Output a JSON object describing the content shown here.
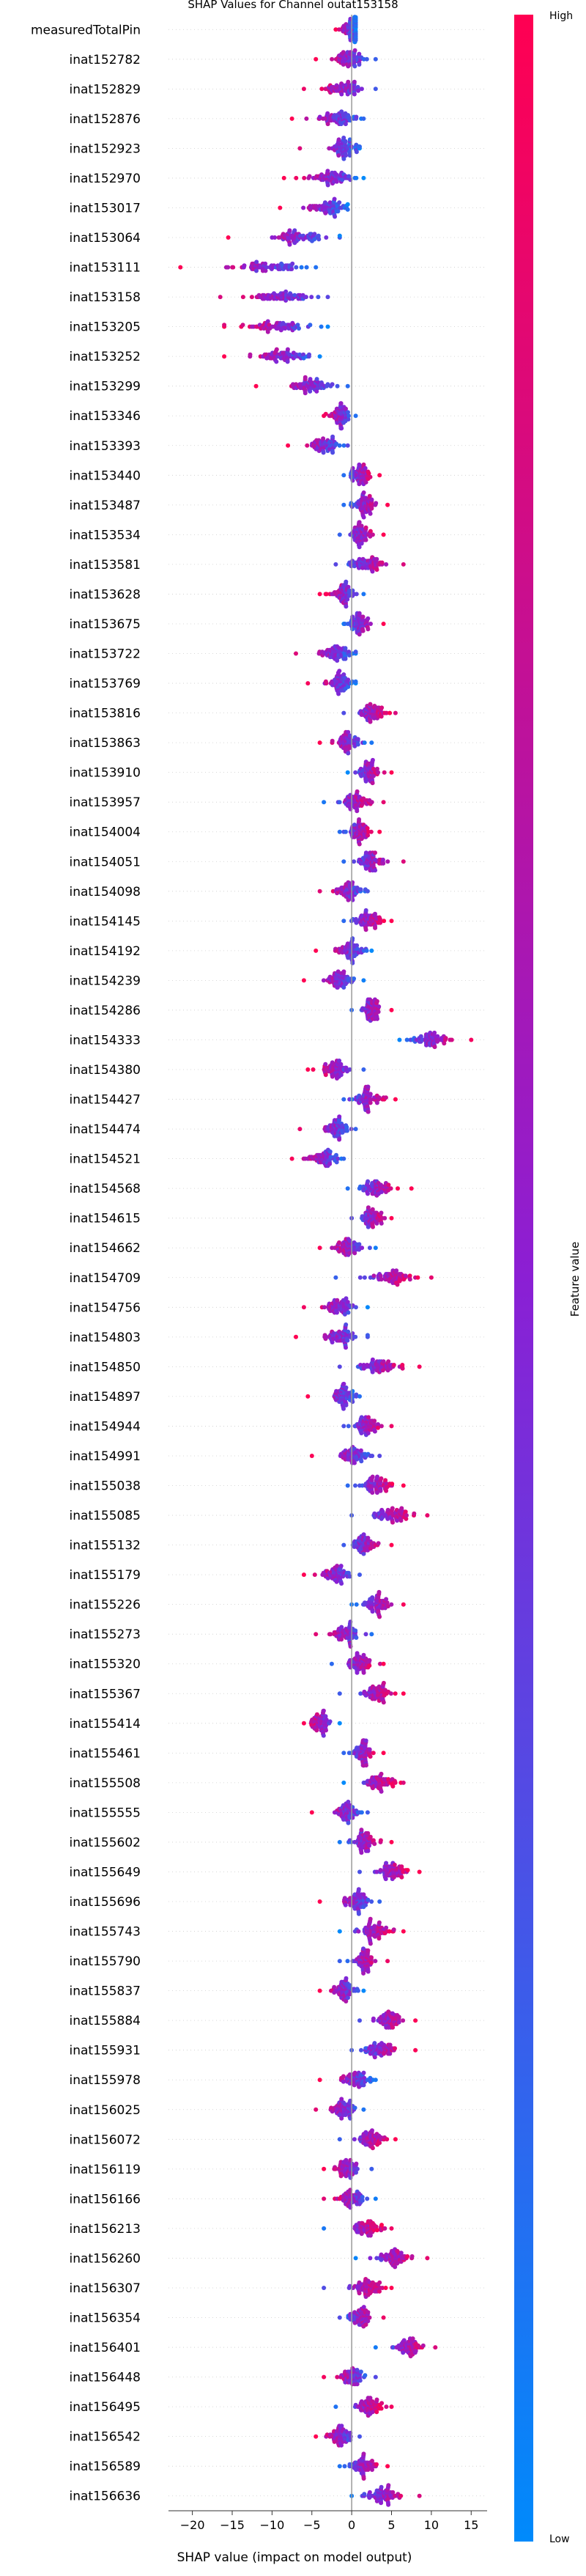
{
  "chart_data": {
    "type": "scatter",
    "subtype": "shap-beeswarm",
    "title": "SHAP Values for Channel outat153158",
    "xlabel": "SHAP value (impact on model output)",
    "xlim": [
      -23,
      17
    ],
    "xticks": [
      -20,
      -15,
      -10,
      -5,
      0,
      5,
      10,
      15
    ],
    "colorbar": {
      "label": "Feature value",
      "high": "High",
      "low": "Low",
      "color_low": "#008afb",
      "color_mid": "#8b1fd4",
      "color_high": "#ff0052"
    },
    "features": [
      {
        "name": "measuredTotalPin",
        "min": -2.0,
        "max": 0.5,
        "mean": 0.0,
        "spread": 1.0
      },
      {
        "name": "inat152782",
        "min": -4.5,
        "max": 3.0,
        "mean": -0.5,
        "spread": 1.6
      },
      {
        "name": "inat152829",
        "min": -6.0,
        "max": 3.0,
        "mean": -1.0,
        "spread": 2.0
      },
      {
        "name": "inat152876",
        "min": -7.5,
        "max": 1.5,
        "mean": -1.5,
        "spread": 2.0
      },
      {
        "name": "inat152923",
        "min": -6.5,
        "max": 1.0,
        "mean": -1.0,
        "spread": 1.5
      },
      {
        "name": "inat152970",
        "min": -8.5,
        "max": 1.5,
        "mean": -2.5,
        "spread": 2.2
      },
      {
        "name": "inat153017",
        "min": -9.0,
        "max": -0.5,
        "mean": -3.0,
        "spread": 2.0
      },
      {
        "name": "inat153064",
        "min": -15.5,
        "max": -1.5,
        "mean": -7.0,
        "spread": 3.0
      },
      {
        "name": "inat153111",
        "min": -21.5,
        "max": -4.5,
        "mean": -10.5,
        "spread": 3.3
      },
      {
        "name": "inat153158",
        "min": -16.5,
        "max": -3.0,
        "mean": -8.5,
        "spread": 3.0
      },
      {
        "name": "inat153205",
        "min": -16.0,
        "max": -3.0,
        "mean": -9.5,
        "spread": 3.0
      },
      {
        "name": "inat153252",
        "min": -16.0,
        "max": -4.0,
        "mean": -9.0,
        "spread": 3.0
      },
      {
        "name": "inat153299",
        "min": -12.0,
        "max": -0.5,
        "mean": -5.0,
        "spread": 2.5
      },
      {
        "name": "inat153346",
        "min": -3.5,
        "max": 0.5,
        "mean": -1.5,
        "spread": 1.0
      },
      {
        "name": "inat153393",
        "min": -8.0,
        "max": -0.5,
        "mean": -3.5,
        "spread": 1.8
      },
      {
        "name": "inat153440",
        "min": -1.0,
        "max": 3.5,
        "mean": 1.0,
        "spread": 1.0
      },
      {
        "name": "inat153487",
        "min": -1.0,
        "max": 4.5,
        "mean": 1.5,
        "spread": 1.2
      },
      {
        "name": "inat153534",
        "min": -1.5,
        "max": 4.0,
        "mean": 1.0,
        "spread": 1.2
      },
      {
        "name": "inat153581",
        "min": -2.0,
        "max": 6.5,
        "mean": 2.0,
        "spread": 1.8
      },
      {
        "name": "inat153628",
        "min": -4.0,
        "max": 1.5,
        "mean": -1.0,
        "spread": 1.2
      },
      {
        "name": "inat153675",
        "min": -1.0,
        "max": 4.0,
        "mean": 1.0,
        "spread": 1.1
      },
      {
        "name": "inat153722",
        "min": -7.0,
        "max": 0.5,
        "mean": -2.0,
        "spread": 1.6
      },
      {
        "name": "inat153769",
        "min": -5.5,
        "max": 0.5,
        "mean": -1.5,
        "spread": 1.3
      },
      {
        "name": "inat153816",
        "min": -1.0,
        "max": 5.5,
        "mean": 2.5,
        "spread": 1.4
      },
      {
        "name": "inat153863",
        "min": -4.0,
        "max": 2.5,
        "mean": -0.5,
        "spread": 1.3
      },
      {
        "name": "inat153910",
        "min": -0.5,
        "max": 5.0,
        "mean": 2.0,
        "spread": 1.2
      },
      {
        "name": "inat153957",
        "min": -3.5,
        "max": 4.0,
        "mean": 0.5,
        "spread": 1.5
      },
      {
        "name": "inat154004",
        "min": -1.5,
        "max": 3.5,
        "mean": 1.0,
        "spread": 1.1
      },
      {
        "name": "inat154051",
        "min": -1.0,
        "max": 6.5,
        "mean": 2.5,
        "spread": 1.6
      },
      {
        "name": "inat154098",
        "min": -4.0,
        "max": 2.0,
        "mean": -0.5,
        "spread": 1.3
      },
      {
        "name": "inat154145",
        "min": -1.0,
        "max": 5.0,
        "mean": 2.0,
        "spread": 1.3
      },
      {
        "name": "inat154192",
        "min": -4.5,
        "max": 2.5,
        "mean": 0.0,
        "spread": 1.4
      },
      {
        "name": "inat154239",
        "min": -6.0,
        "max": 1.5,
        "mean": -1.5,
        "spread": 1.4
      },
      {
        "name": "inat154286",
        "min": 0.0,
        "max": 5.0,
        "mean": 2.5,
        "spread": 1.1
      },
      {
        "name": "inat154333",
        "min": 6.0,
        "max": 15.0,
        "mean": 10.0,
        "spread": 2.0
      },
      {
        "name": "inat154380",
        "min": -5.5,
        "max": 1.5,
        "mean": -2.0,
        "spread": 1.4
      },
      {
        "name": "inat154427",
        "min": -1.0,
        "max": 5.5,
        "mean": 2.0,
        "spread": 1.4
      },
      {
        "name": "inat154474",
        "min": -6.5,
        "max": 0.5,
        "mean": -2.0,
        "spread": 1.5
      },
      {
        "name": "inat154521",
        "min": -7.5,
        "max": -1.0,
        "mean": -3.5,
        "spread": 1.4
      },
      {
        "name": "inat154568",
        "min": -0.5,
        "max": 7.5,
        "mean": 3.0,
        "spread": 1.7
      },
      {
        "name": "inat154615",
        "min": 0.0,
        "max": 5.0,
        "mean": 2.5,
        "spread": 1.1
      },
      {
        "name": "inat154662",
        "min": -4.0,
        "max": 3.0,
        "mean": -0.5,
        "spread": 1.3
      },
      {
        "name": "inat154709",
        "min": -2.0,
        "max": 10.0,
        "mean": 5.0,
        "spread": 2.2
      },
      {
        "name": "inat154756",
        "min": -6.0,
        "max": 2.0,
        "mean": -1.5,
        "spread": 1.6
      },
      {
        "name": "inat154803",
        "min": -7.0,
        "max": 2.0,
        "mean": -1.5,
        "spread": 1.7
      },
      {
        "name": "inat154850",
        "min": -1.5,
        "max": 8.5,
        "mean": 3.5,
        "spread": 2.0
      },
      {
        "name": "inat154897",
        "min": -5.5,
        "max": 1.0,
        "mean": -1.0,
        "spread": 1.2
      },
      {
        "name": "inat154944",
        "min": -1.0,
        "max": 5.0,
        "mean": 2.0,
        "spread": 1.3
      },
      {
        "name": "inat154991",
        "min": -5.0,
        "max": 3.5,
        "mean": 0.5,
        "spread": 1.6
      },
      {
        "name": "inat155038",
        "min": -0.5,
        "max": 6.5,
        "mean": 3.0,
        "spread": 1.4
      },
      {
        "name": "inat155085",
        "min": 0.0,
        "max": 9.5,
        "mean": 5.0,
        "spread": 1.9
      },
      {
        "name": "inat155132",
        "min": -1.0,
        "max": 5.0,
        "mean": 1.5,
        "spread": 1.2
      },
      {
        "name": "inat155179",
        "min": -6.0,
        "max": 1.0,
        "mean": -2.0,
        "spread": 1.4
      },
      {
        "name": "inat155226",
        "min": 0.0,
        "max": 6.5,
        "mean": 3.0,
        "spread": 1.4
      },
      {
        "name": "inat155273",
        "min": -4.5,
        "max": 2.5,
        "mean": -0.5,
        "spread": 1.4
      },
      {
        "name": "inat155320",
        "min": -2.5,
        "max": 4.0,
        "mean": 1.0,
        "spread": 1.3
      },
      {
        "name": "inat155367",
        "min": -1.5,
        "max": 6.5,
        "mean": 3.0,
        "spread": 1.6
      },
      {
        "name": "inat155414",
        "min": -6.0,
        "max": -1.5,
        "mean": -4.0,
        "spread": 1.0
      },
      {
        "name": "inat155461",
        "min": -1.0,
        "max": 4.0,
        "mean": 1.5,
        "spread": 1.1
      },
      {
        "name": "inat155508",
        "min": -1.0,
        "max": 6.5,
        "mean": 3.5,
        "spread": 1.4
      },
      {
        "name": "inat155555",
        "min": -5.0,
        "max": 2.0,
        "mean": -0.5,
        "spread": 1.3
      },
      {
        "name": "inat155602",
        "min": -1.5,
        "max": 5.0,
        "mean": 1.5,
        "spread": 1.3
      },
      {
        "name": "inat155649",
        "min": 1.0,
        "max": 8.5,
        "mean": 5.0,
        "spread": 1.5
      },
      {
        "name": "inat155696",
        "min": -4.0,
        "max": 3.5,
        "mean": 0.5,
        "spread": 1.4
      },
      {
        "name": "inat155743",
        "min": -1.5,
        "max": 6.5,
        "mean": 3.0,
        "spread": 1.6
      },
      {
        "name": "inat155790",
        "min": -1.5,
        "max": 4.5,
        "mean": 1.5,
        "spread": 1.2
      },
      {
        "name": "inat155837",
        "min": -4.0,
        "max": 1.5,
        "mean": -1.0,
        "spread": 1.1
      },
      {
        "name": "inat155884",
        "min": 1.0,
        "max": 8.0,
        "mean": 4.5,
        "spread": 1.4
      },
      {
        "name": "inat155931",
        "min": 0.0,
        "max": 8.0,
        "mean": 3.5,
        "spread": 1.6
      },
      {
        "name": "inat155978",
        "min": -4.0,
        "max": 3.0,
        "mean": 0.5,
        "spread": 1.4
      },
      {
        "name": "inat156025",
        "min": -4.5,
        "max": 1.5,
        "mean": -1.0,
        "spread": 1.2
      },
      {
        "name": "inat156072",
        "min": -1.5,
        "max": 5.5,
        "mean": 2.5,
        "spread": 1.4
      },
      {
        "name": "inat156119",
        "min": -3.5,
        "max": 2.5,
        "mean": -0.5,
        "spread": 1.2
      },
      {
        "name": "inat156166",
        "min": -3.5,
        "max": 3.0,
        "mean": 0.0,
        "spread": 1.3
      },
      {
        "name": "inat156213",
        "min": -3.5,
        "max": 5.0,
        "mean": 2.0,
        "spread": 1.6
      },
      {
        "name": "inat156260",
        "min": 0.5,
        "max": 9.5,
        "mean": 5.5,
        "spread": 1.8
      },
      {
        "name": "inat156307",
        "min": -3.5,
        "max": 5.0,
        "mean": 2.0,
        "spread": 1.6
      },
      {
        "name": "inat156354",
        "min": -1.5,
        "max": 4.0,
        "mean": 1.0,
        "spread": 1.1
      },
      {
        "name": "inat156401",
        "min": 3.0,
        "max": 10.5,
        "mean": 7.0,
        "spread": 1.5
      },
      {
        "name": "inat156448",
        "min": -3.5,
        "max": 3.0,
        "mean": 0.0,
        "spread": 1.3
      },
      {
        "name": "inat156495",
        "min": -2.0,
        "max": 5.0,
        "mean": 2.0,
        "spread": 1.4
      },
      {
        "name": "inat156542",
        "min": -4.5,
        "max": 1.0,
        "mean": -1.5,
        "spread": 1.1
      },
      {
        "name": "inat156589",
        "min": -1.5,
        "max": 4.5,
        "mean": 1.5,
        "spread": 1.2
      },
      {
        "name": "inat156636",
        "min": 0.0,
        "max": 8.5,
        "mean": 4.0,
        "spread": 1.7
      }
    ]
  }
}
